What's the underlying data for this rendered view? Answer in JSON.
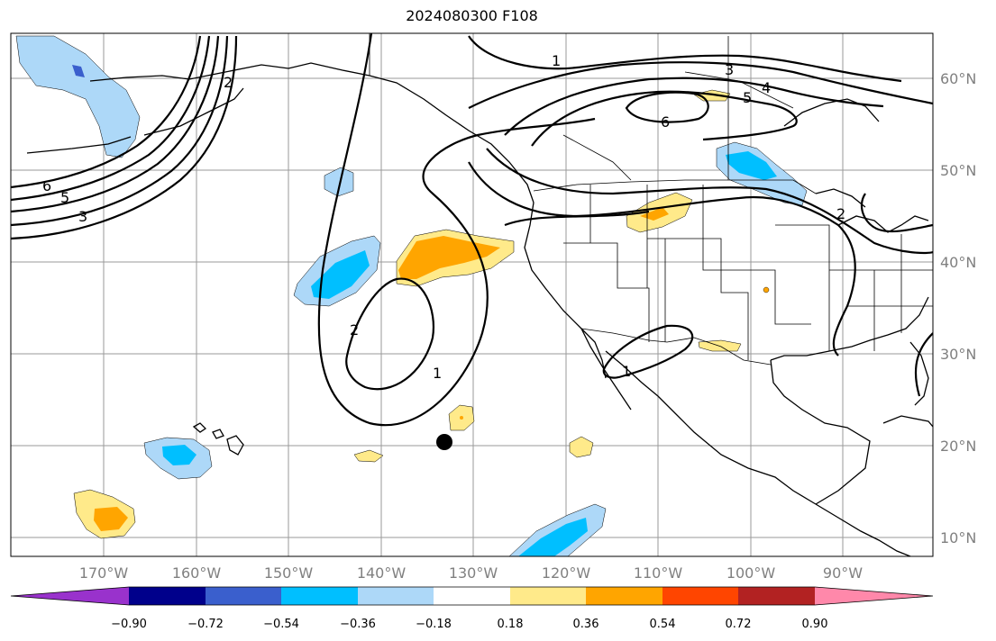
{
  "title": "2024080300 F108",
  "map": {
    "lat_labels": [
      "60°N",
      "50°N",
      "40°N",
      "30°N",
      "20°N",
      "10°N"
    ],
    "lon_labels": [
      "170°W",
      "160°W",
      "150°W",
      "140°W",
      "130°W",
      "120°W",
      "110°W",
      "100°W",
      "90°W"
    ],
    "storm_marker": {
      "lat": 20.3,
      "lon": -133.1
    },
    "contour_labels": [
      "1",
      "2",
      "3",
      "4",
      "5",
      "6",
      "6",
      "5",
      "3",
      "2",
      "1",
      "2",
      "1"
    ]
  },
  "colorbar": {
    "ticks": [
      "−0.90",
      "−0.72",
      "−0.54",
      "−0.36",
      "−0.18",
      "0.18",
      "0.36",
      "0.54",
      "0.72",
      "0.90"
    ],
    "colors": [
      "#9932cc",
      "#00008b",
      "#3a5fcd",
      "#00bfff",
      "#add8f8",
      "#ffffff",
      "#ffea8a",
      "#ffa500",
      "#ff4500",
      "#b22222",
      "#ff88aa"
    ]
  }
}
